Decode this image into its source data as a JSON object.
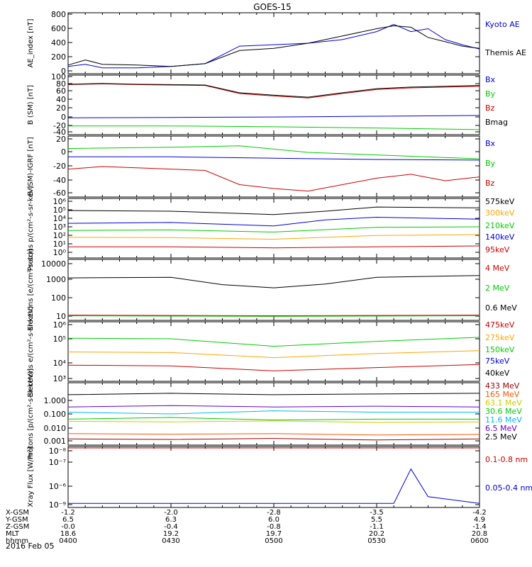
{
  "title": "GOES-15",
  "date_label": "2016 Feb 05",
  "colors": {
    "black": "#000000",
    "blue": "#0000dd",
    "red": "#cc0000",
    "green": "#00cc00",
    "orange": "#ffa500",
    "cyan": "#00bbee",
    "purple": "#6600cc",
    "yellow": "#cccc00",
    "darkred": "#990000",
    "orangered": "#ff5500"
  },
  "footer": {
    "rows": [
      {
        "label": "X-GSM",
        "values": [
          "-1.2",
          "-2.0",
          "-2.8",
          "-3.5",
          "-4.2"
        ]
      },
      {
        "label": "Y-GSM",
        "values": [
          "6.5",
          "6.3",
          "6.0",
          "5.5",
          "4.9"
        ]
      },
      {
        "label": "Z-GSM",
        "values": [
          "-0.0",
          "-0.4",
          "-0.8",
          "-1.1",
          "-1.4"
        ]
      },
      {
        "label": "MLT",
        "values": [
          "18.6",
          "19.2",
          "19.7",
          "20.2",
          "20.8"
        ]
      },
      {
        "label": "hhmm",
        "values": [
          "0400",
          "0430",
          "0500",
          "0530",
          "0600"
        ]
      }
    ]
  },
  "chart_data": [
    {
      "type": "line",
      "ylabel": "AE_index [nT]",
      "ylim": [
        0,
        800
      ],
      "yticks": [
        "800",
        "600",
        "400",
        "200",
        "0"
      ],
      "time_range": [
        "0400",
        "0600"
      ],
      "series": [
        {
          "name": "Kyoto AE",
          "color": "#0000dd",
          "x": [
            0,
            5,
            10,
            20,
            30,
            40,
            50,
            60,
            70,
            80,
            90,
            95,
            100,
            105,
            110,
            115,
            120
          ],
          "y": [
            80,
            110,
            60,
            60,
            80,
            120,
            360,
            380,
            400,
            450,
            560,
            660,
            560,
            600,
            450,
            380,
            320
          ]
        },
        {
          "name": "Themis AE",
          "color": "#000000",
          "x": [
            0,
            5,
            10,
            20,
            30,
            40,
            50,
            60,
            70,
            80,
            90,
            95,
            100,
            105,
            110,
            115,
            120
          ],
          "y": [
            100,
            170,
            110,
            100,
            80,
            120,
            300,
            330,
            400,
            500,
            600,
            640,
            620,
            480,
            420,
            360,
            330
          ]
        }
      ]
    },
    {
      "type": "line",
      "ylabel": "B (SM) [nT]",
      "ylim": [
        -40,
        100
      ],
      "yticks": [
        "100",
        "80",
        "60",
        "40",
        "20",
        "0",
        "-20",
        "-40"
      ],
      "series": [
        {
          "name": "Bx",
          "color": "#0000dd",
          "x": [
            0,
            30,
            60,
            90,
            120
          ],
          "y": [
            -2,
            -1,
            0,
            2,
            4
          ]
        },
        {
          "name": "By",
          "color": "#00cc00",
          "x": [
            0,
            30,
            60,
            90,
            120
          ],
          "y": [
            -22,
            -22,
            -24,
            -27,
            -31
          ]
        },
        {
          "name": "Bz",
          "color": "#cc0000",
          "x": [
            0,
            10,
            20,
            30,
            40,
            50,
            60,
            70,
            80,
            90,
            100,
            110,
            120
          ],
          "y": [
            80,
            82,
            80,
            79,
            78,
            58,
            52,
            47,
            58,
            68,
            72,
            74,
            76
          ]
        },
        {
          "name": "Bmag",
          "color": "#000000",
          "x": [
            0,
            10,
            20,
            30,
            40,
            50,
            60,
            70,
            80,
            90,
            100,
            110,
            120
          ],
          "y": [
            81,
            83,
            81,
            80,
            79,
            60,
            54,
            49,
            60,
            70,
            74,
            76,
            78
          ]
        }
      ]
    },
    {
      "type": "line",
      "ylabel": "B (SM)-IGRF [nT]",
      "ylim": [
        -65,
        25
      ],
      "yticks": [
        "20",
        "0",
        "-20",
        "-40",
        "-60"
      ],
      "series": [
        {
          "name": "Bx",
          "color": "#0000dd",
          "x": [
            0,
            30,
            60,
            90,
            120
          ],
          "y": [
            -5,
            -5,
            -7,
            -9,
            -10
          ]
        },
        {
          "name": "By",
          "color": "#00cc00",
          "x": [
            0,
            30,
            50,
            70,
            90,
            120
          ],
          "y": [
            8,
            10,
            12,
            2,
            -2,
            -8
          ]
        },
        {
          "name": "Bz",
          "color": "#cc0000",
          "x": [
            0,
            10,
            20,
            30,
            40,
            50,
            60,
            70,
            80,
            90,
            100,
            110,
            120
          ],
          "y": [
            -24,
            -20,
            -22,
            -24,
            -26,
            -48,
            -54,
            -58,
            -48,
            -38,
            -32,
            -42,
            -36
          ]
        }
      ]
    },
    {
      "type": "line",
      "ylabel": "Protons p/(cm²-s-sr-keV)",
      "yscale": "log",
      "ylim": [
        0.3,
        1000000
      ],
      "yticks": [
        "10⁶",
        "10⁵",
        "10⁴",
        "10³",
        "10²",
        "10¹",
        "10⁰"
      ],
      "series": [
        {
          "name": "575keV",
          "color": "#000000",
          "x": [
            0,
            30,
            60,
            75,
            90,
            120
          ],
          "y": [
            60000,
            50000,
            20000,
            50000,
            150000,
            120000
          ]
        },
        {
          "name": "300keV",
          "color": "#ffa500",
          "x": [
            0,
            30,
            60,
            90,
            120
          ],
          "y": [
            50,
            45,
            30,
            80,
            100
          ]
        },
        {
          "name": "210keV",
          "color": "#00cc00",
          "x": [
            0,
            30,
            60,
            90,
            120
          ],
          "y": [
            300,
            350,
            200,
            700,
            800
          ]
        },
        {
          "name": "140keV",
          "color": "#0000dd",
          "x": [
            0,
            30,
            60,
            75,
            90,
            120
          ],
          "y": [
            2000,
            2500,
            1000,
            5000,
            10000,
            6000
          ]
        },
        {
          "name": "95keV",
          "color": "#cc0000",
          "x": [
            0,
            30,
            60,
            90,
            120
          ],
          "y": [
            4,
            4,
            3,
            4,
            5
          ]
        }
      ]
    },
    {
      "type": "line",
      "ylabel": "Electrons [e/(cm²-s-sr)]",
      "yscale": "log",
      "ylim": [
        8,
        12000
      ],
      "yticks": [
        "10000",
        "1000",
        "100",
        "10"
      ],
      "series": [
        {
          "name": "4 MeV",
          "color": "#cc0000",
          "x": [
            0,
            60,
            120
          ],
          "y": [
            13,
            12,
            13
          ]
        },
        {
          "name": "2 MeV",
          "color": "#00cc00",
          "x": [
            0,
            60,
            120
          ],
          "y": [
            12,
            11,
            12
          ]
        },
        {
          "name": "0.6 MeV",
          "color": "#000000",
          "x": [
            0,
            30,
            45,
            60,
            75,
            90,
            120
          ],
          "y": [
            1400,
            1500,
            600,
            400,
            650,
            1500,
            1900
          ]
        }
      ]
    },
    {
      "type": "line",
      "ylabel": "Electrons e/(cm²-s-sr-keV)",
      "yscale": "log",
      "ylim": [
        1000,
        1000000
      ],
      "yticks": [
        "10⁶",
        "10⁵",
        "10⁴",
        "10³"
      ],
      "series": [
        {
          "name": "475keV",
          "color": "#cc0000",
          "x": [
            0,
            30,
            60,
            90,
            120
          ],
          "y": [
            6000,
            5500,
            3000,
            4500,
            6500
          ]
        },
        {
          "name": "275keV",
          "color": "#ffa500",
          "x": [
            0,
            30,
            60,
            90,
            120
          ],
          "y": [
            30000,
            28000,
            15000,
            25000,
            35000
          ]
        },
        {
          "name": "150keV",
          "color": "#00cc00",
          "x": [
            0,
            30,
            60,
            90,
            120
          ],
          "y": [
            160000,
            150000,
            60000,
            110000,
            180000
          ]
        },
        {
          "name": "75keV",
          "color": "#0000dd",
          "x": [],
          "y": []
        },
        {
          "name": "40keV",
          "color": "#000000",
          "x": [],
          "y": []
        }
      ]
    },
    {
      "type": "line",
      "ylabel": "Protons [p/(cm²-s-sr-keV)]",
      "yscale": "log",
      "ylim": [
        0.0008,
        2
      ],
      "yticks": [
        "1.000",
        "0.100",
        "0.010",
        "0.001"
      ],
      "series": [
        {
          "name": "433 MeV",
          "color": "#990000",
          "x": [
            0,
            30,
            60,
            90,
            120
          ],
          "y": [
            0.0015,
            0.0014,
            0.0016,
            0.0013,
            0.0015
          ]
        },
        {
          "name": "165 MeV",
          "color": "#ff5500",
          "x": [
            0,
            30,
            60,
            90,
            120
          ],
          "y": [
            0.003,
            0.0028,
            0.003,
            0.0025,
            0.0027
          ]
        },
        {
          "name": "63.1 MeV",
          "color": "#cccc00",
          "x": [
            0,
            30,
            60,
            90,
            120
          ],
          "y": [
            0.015,
            0.014,
            0.016,
            0.013,
            0.014
          ]
        },
        {
          "name": "30.6 MeV",
          "color": "#00cc00",
          "x": [
            0,
            30,
            60,
            90,
            120
          ],
          "y": [
            0.02,
            0.025,
            0.018,
            0.02,
            0.02
          ]
        },
        {
          "name": "11.6 MeV",
          "color": "#00bbee",
          "x": [
            0,
            30,
            60,
            90,
            120
          ],
          "y": [
            0.05,
            0.04,
            0.06,
            0.05,
            0.05
          ]
        },
        {
          "name": "6.5 MeV",
          "color": "#6600cc",
          "x": [
            0,
            30,
            60,
            90,
            120
          ],
          "y": [
            0.1,
            0.12,
            0.1,
            0.11,
            0.1
          ]
        },
        {
          "name": "2.5 MeV",
          "color": "#000000",
          "x": [
            0,
            30,
            60,
            90,
            120
          ],
          "y": [
            0.5,
            0.6,
            0.5,
            0.55,
            0.6
          ]
        }
      ]
    },
    {
      "type": "line",
      "ylabel": "Xray Flux [W/m²]",
      "yscale": "log",
      "ylim": [
        8e-10,
        1e-08
      ],
      "yticks": [
        "10⁻⁸",
        "10⁻⁷",
        "10⁻⁶",
        "10⁻⁹"
      ],
      "series": [
        {
          "name": "0.1-0.8 nm",
          "color": "#cc0000",
          "x": [
            0,
            30,
            60,
            90,
            120
          ],
          "y": [
            6e-08,
            6e-08,
            6e-08,
            6e-08,
            6e-08
          ]
        },
        {
          "name": "0.05-0.4 nm",
          "color": "#0000dd",
          "x": [
            0,
            95,
            100,
            105,
            120
          ],
          "y": [
            9e-10,
            9e-10,
            4e-09,
            1.2e-09,
            9e-10
          ]
        }
      ]
    }
  ]
}
